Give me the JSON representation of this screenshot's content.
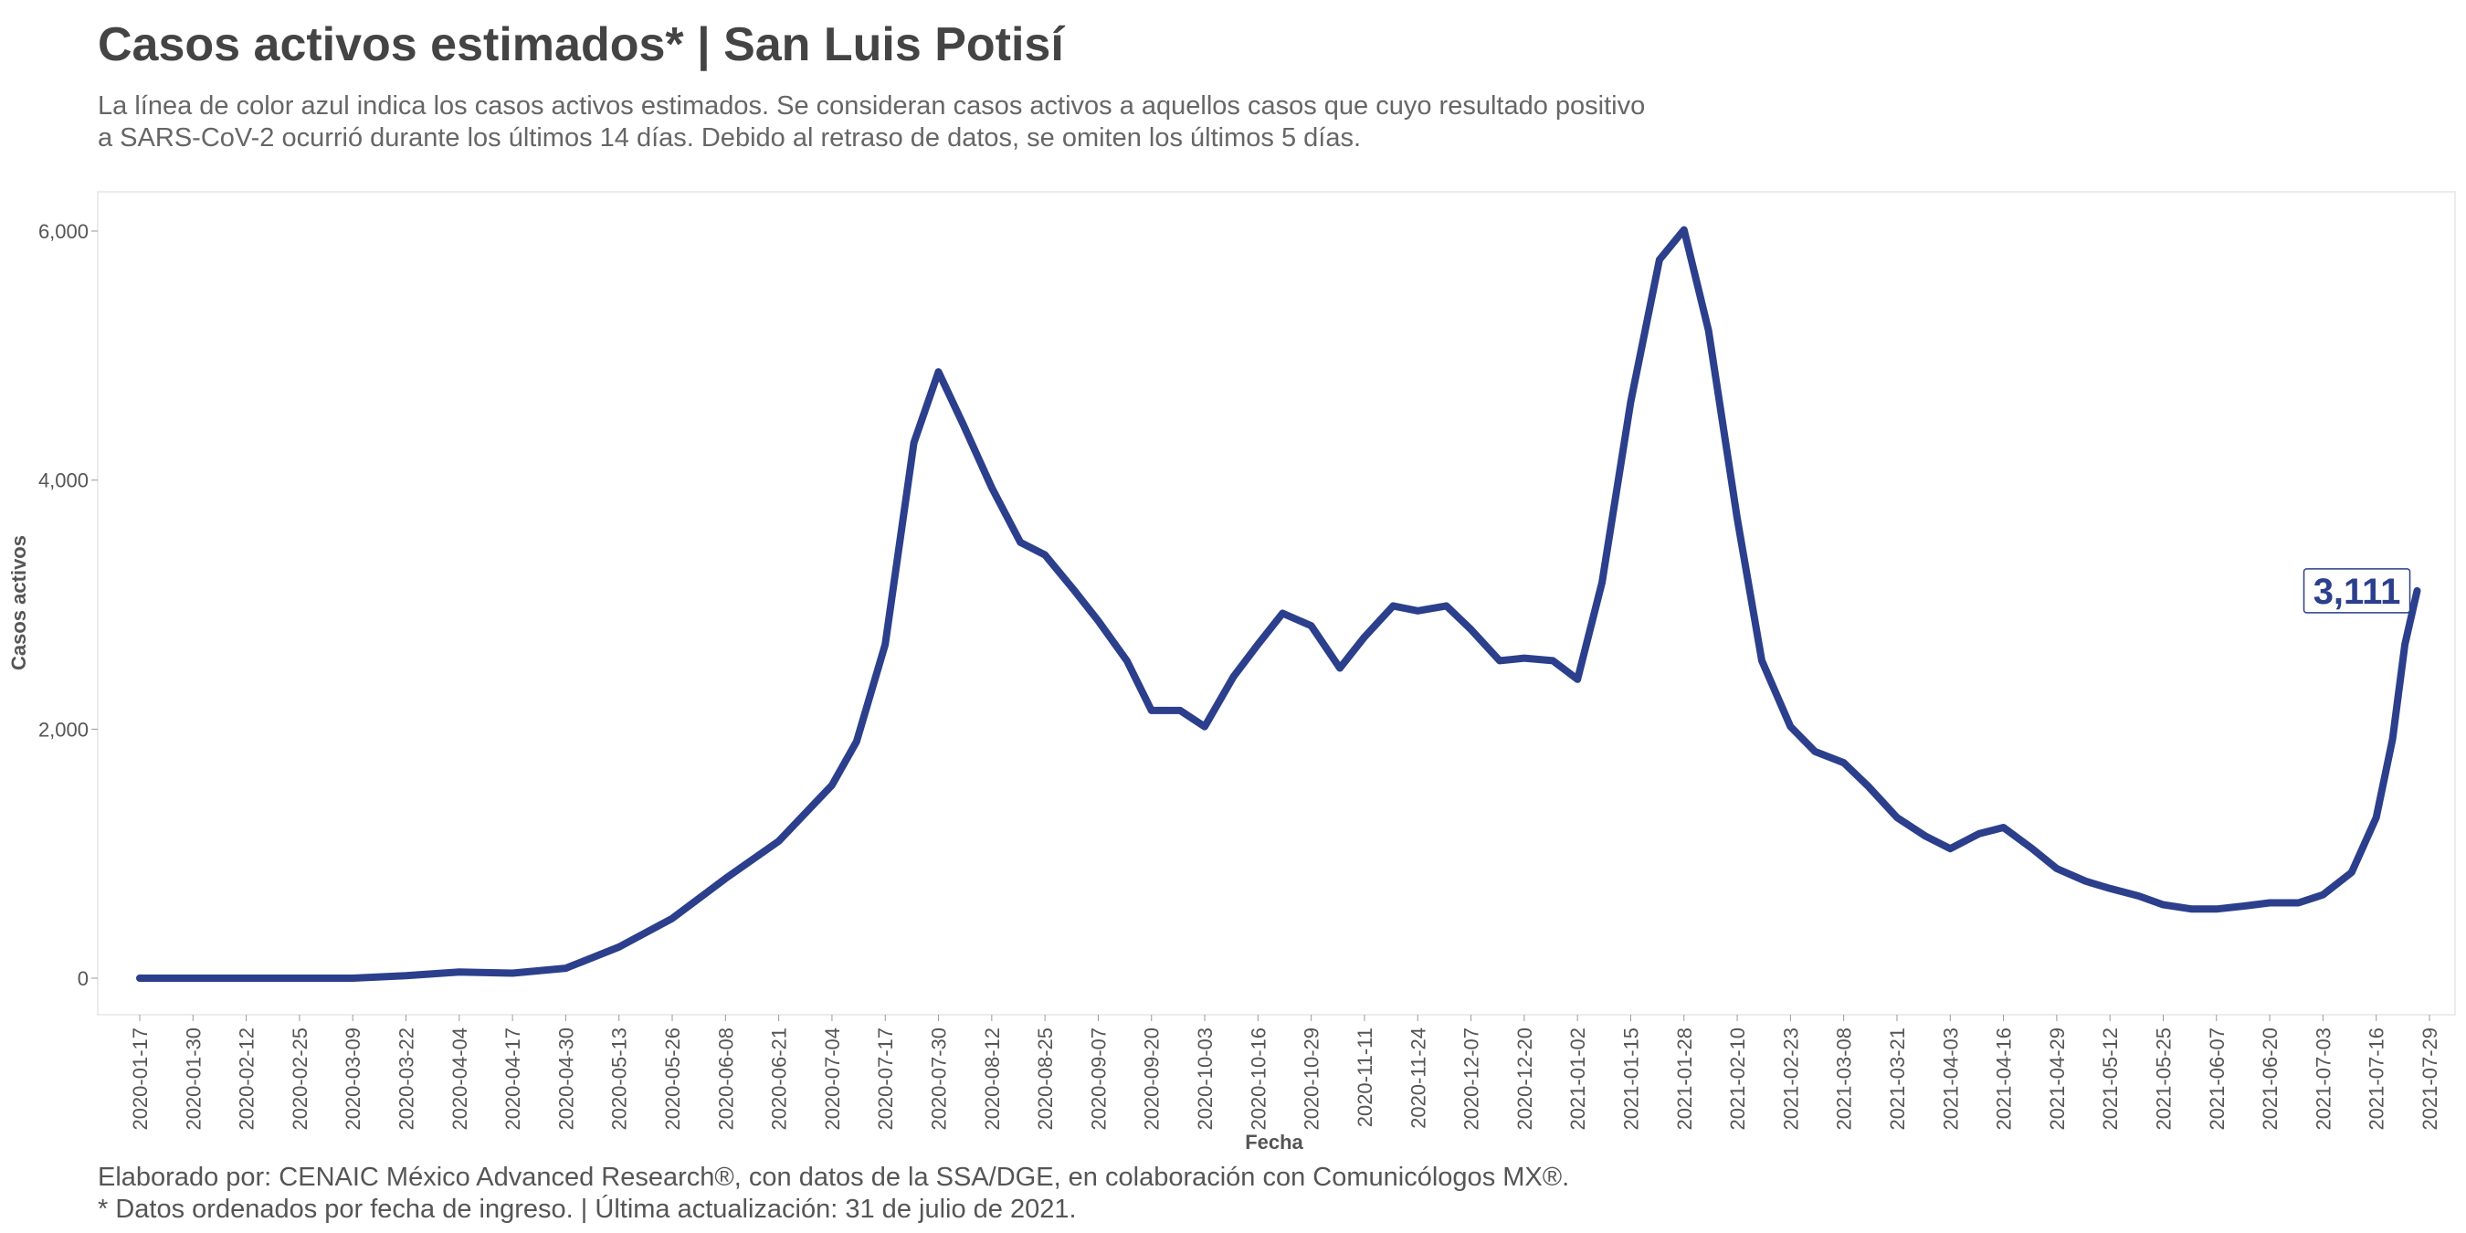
{
  "chart_data": {
    "type": "line",
    "title": "Casos activos estimados* | San Luis Potisí",
    "subtitle": [
      "La línea de color azul indica los casos activos estimados. Se consideran casos activos a aquellos casos que cuyo resultado positivo",
      "a SARS-CoV-2 ocurrió durante los últimos 14 días. Debido al retraso de datos, se omiten los últimos 5 días."
    ],
    "x_label": "Fecha",
    "y_label": "Casos activos",
    "caption": [
      "Elaborado por: CENAIC México Advanced Research®, con datos de la SSA/DGE, en colaboración con Comunicólogos MX®.",
      "* Datos ordenados por fecha de ingreso. | Última actualización: 31 de julio de 2021."
    ],
    "color": "#2b3f8c",
    "x": [
      "2020-01-17",
      "2020-01-30",
      "2020-02-12",
      "2020-02-25",
      "2020-03-09",
      "2020-03-22",
      "2020-04-04",
      "2020-04-17",
      "2020-04-30",
      "2020-05-13",
      "2020-05-26",
      "2020-06-08",
      "2020-06-21",
      "2020-07-04",
      "2020-07-10",
      "2020-07-17",
      "2020-07-24",
      "2020-07-30",
      "2020-08-05",
      "2020-08-12",
      "2020-08-19",
      "2020-08-25",
      "2020-09-01",
      "2020-09-07",
      "2020-09-14",
      "2020-09-20",
      "2020-09-27",
      "2020-10-03",
      "2020-10-10",
      "2020-10-16",
      "2020-10-22",
      "2020-10-29",
      "2020-11-05",
      "2020-11-11",
      "2020-11-18",
      "2020-11-24",
      "2020-12-01",
      "2020-12-07",
      "2020-12-14",
      "2020-12-20",
      "2020-12-27",
      "2021-01-02",
      "2021-01-08",
      "2021-01-15",
      "2021-01-22",
      "2021-01-28",
      "2021-02-03",
      "2021-02-10",
      "2021-02-16",
      "2021-02-23",
      "2021-03-01",
      "2021-03-08",
      "2021-03-14",
      "2021-03-21",
      "2021-03-28",
      "2021-04-03",
      "2021-04-10",
      "2021-04-16",
      "2021-04-23",
      "2021-04-29",
      "2021-05-06",
      "2021-05-12",
      "2021-05-19",
      "2021-05-25",
      "2021-06-01",
      "2021-06-07",
      "2021-06-14",
      "2021-06-20",
      "2021-06-27",
      "2021-07-03",
      "2021-07-10",
      "2021-07-16",
      "2021-07-20",
      "2021-07-23",
      "2021-07-26"
    ],
    "values": [
      0,
      0,
      0,
      0,
      0,
      20,
      50,
      40,
      80,
      250,
      480,
      800,
      1100,
      1550,
      1900,
      2680,
      4300,
      4870,
      4450,
      3940,
      3500,
      3400,
      3120,
      2870,
      2550,
      2150,
      2150,
      2020,
      2420,
      2680,
      2930,
      2830,
      2490,
      2740,
      2990,
      2950,
      2990,
      2800,
      2550,
      2570,
      2550,
      2400,
      3180,
      4630,
      5770,
      6010,
      5200,
      3690,
      2550,
      2020,
      1820,
      1730,
      1540,
      1290,
      1140,
      1040,
      1160,
      1210,
      1040,
      880,
      780,
      720,
      660,
      590,
      555,
      555,
      580,
      605,
      605,
      670,
      850,
      1290,
      1920,
      2680,
      3111
    ],
    "value_labels": [
      null,
      null,
      null,
      null,
      null,
      null,
      null,
      null,
      null,
      null,
      null,
      null,
      null,
      null,
      null,
      null,
      null,
      null,
      null,
      null,
      null,
      null,
      null,
      null,
      null,
      null,
      null,
      null,
      null,
      null,
      null,
      null,
      null,
      null,
      null,
      null,
      null,
      null,
      null,
      null,
      null,
      null,
      null,
      null,
      null,
      null,
      null,
      null,
      null,
      null,
      null,
      null,
      null,
      null,
      null,
      null,
      null,
      null,
      null,
      null,
      null,
      null,
      null,
      null,
      null,
      null,
      null,
      null,
      null,
      null,
      null,
      null,
      null,
      null,
      "3,111"
    ],
    "xlim": [
      "2020-01-17",
      "2021-07-29"
    ],
    "xticks": [
      "2020-01-17",
      "2020-01-30",
      "2020-02-12",
      "2020-02-25",
      "2020-03-09",
      "2020-03-22",
      "2020-04-04",
      "2020-04-17",
      "2020-04-30",
      "2020-05-13",
      "2020-05-26",
      "2020-06-08",
      "2020-06-21",
      "2020-07-04",
      "2020-07-17",
      "2020-07-30",
      "2020-08-12",
      "2020-08-25",
      "2020-09-07",
      "2020-09-20",
      "2020-10-03",
      "2020-10-16",
      "2020-10-29",
      "2020-11-11",
      "2020-11-24",
      "2020-12-07",
      "2020-12-20",
      "2021-01-02",
      "2021-01-15",
      "2021-01-28",
      "2021-02-10",
      "2021-02-23",
      "2021-03-08",
      "2021-03-21",
      "2021-04-03",
      "2021-04-16",
      "2021-04-29",
      "2021-05-12",
      "2021-05-25",
      "2021-06-07",
      "2021-06-20",
      "2021-07-03",
      "2021-07-16",
      "2021-07-29"
    ],
    "ylim": [
      0,
      6000
    ],
    "yticks": [
      0,
      {
        "value": 2000,
        "label": "2,000"
      },
      {
        "value": 4000,
        "label": "4,000"
      },
      {
        "value": 6000,
        "label": "6,000"
      }
    ],
    "grid": false
  }
}
